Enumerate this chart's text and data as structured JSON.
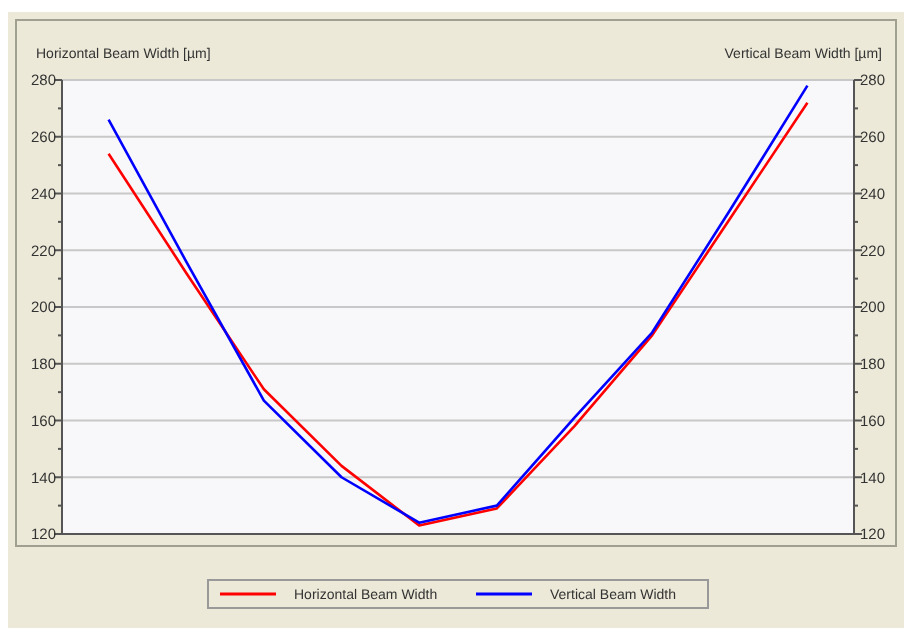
{
  "chart_data": {
    "type": "line",
    "ylabel": "Horizontal Beam Width [µm]",
    "y2label": "Vertical Beam Width [µm]",
    "categories": [
      null,
      null,
      null,
      null,
      null,
      null,
      null,
      null,
      null,
      null
    ],
    "series": [
      {
        "name": "Horizontal Beam Width",
        "color": "#ff0000",
        "values": [
          254,
          212,
          171,
          144,
          123,
          129,
          158,
          190,
          231,
          272
        ]
      },
      {
        "name": "Vertical Beam Width",
        "color": "#0000ff",
        "values": [
          266,
          216,
          167,
          140,
          124,
          130,
          161,
          191,
          234,
          278
        ]
      }
    ],
    "ylim": [
      120,
      280
    ],
    "yticks": [
      120,
      {
        "value": 130,
        "label": null
      },
      140,
      {
        "value": 150,
        "label": null
      },
      160,
      {
        "value": 170,
        "label": null
      },
      180,
      {
        "value": 190,
        "label": null
      },
      200,
      {
        "value": 210,
        "label": null
      },
      220,
      {
        "value": 230,
        "label": null
      },
      240,
      {
        "value": 250,
        "label": null
      },
      260,
      {
        "value": 270,
        "label": null
      },
      280
    ],
    "y2lim": [
      120,
      280
    ],
    "y2ticks": [
      120,
      {
        "value": 130,
        "label": null
      },
      140,
      {
        "value": 150,
        "label": null
      },
      160,
      {
        "value": 170,
        "label": null
      },
      180,
      {
        "value": 190,
        "label": null
      },
      200,
      {
        "value": 210,
        "label": null
      },
      220,
      {
        "value": 230,
        "label": null
      },
      240,
      {
        "value": 250,
        "label": null
      },
      260,
      {
        "value": 270,
        "label": null
      },
      280
    ],
    "grid": "y",
    "legend": "bottom",
    "tick_labels": "y",
    "marker": "none",
    "line_style": "solid"
  }
}
